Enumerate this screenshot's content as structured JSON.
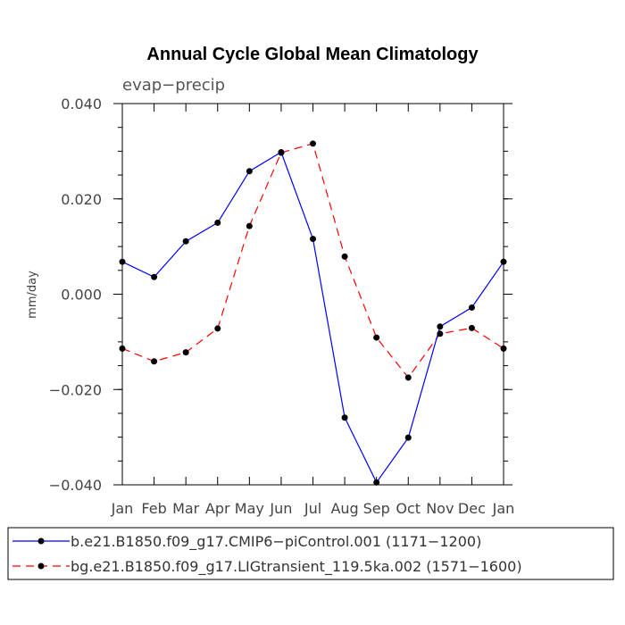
{
  "chart_data": {
    "type": "line",
    "title": "Annual Cycle Global Mean Climatology",
    "subtitle": "evap−precip",
    "xlabel": "",
    "ylabel": "mm/day",
    "categories": [
      "Jan",
      "Feb",
      "Mar",
      "Apr",
      "May",
      "Jun",
      "Jul",
      "Aug",
      "Sep",
      "Oct",
      "Nov",
      "Dec",
      "Jan"
    ],
    "ylim": [
      -0.04,
      0.04
    ],
    "yticks": [
      -0.04,
      -0.02,
      0.0,
      0.02,
      0.04
    ],
    "ytick_labels": [
      "−0.040",
      "−0.020",
      "0.000",
      "0.020",
      "0.040"
    ],
    "legend_position": "bottom",
    "series": [
      {
        "name": "b.e21.B1850.f09_g17.CMIP6−piControl.001 (1171−1200)",
        "color": "#0000ff",
        "dash": "solid",
        "values": [
          0.0068,
          0.0036,
          0.0111,
          0.015,
          0.0258,
          0.0298,
          0.0116,
          -0.0259,
          -0.0395,
          -0.0301,
          -0.0068,
          -0.0028,
          0.0068
        ]
      },
      {
        "name": "bg.e21.B1850.f09_g17.LIGtransient_119.5ka.002 (1571−1600)",
        "color": "#ff0000",
        "dash": "dashed",
        "values": [
          -0.0114,
          -0.0141,
          -0.0122,
          -0.0072,
          0.0143,
          0.0297,
          0.0316,
          0.0079,
          -0.0091,
          -0.0175,
          -0.0083,
          -0.0071,
          -0.0114
        ]
      }
    ]
  }
}
